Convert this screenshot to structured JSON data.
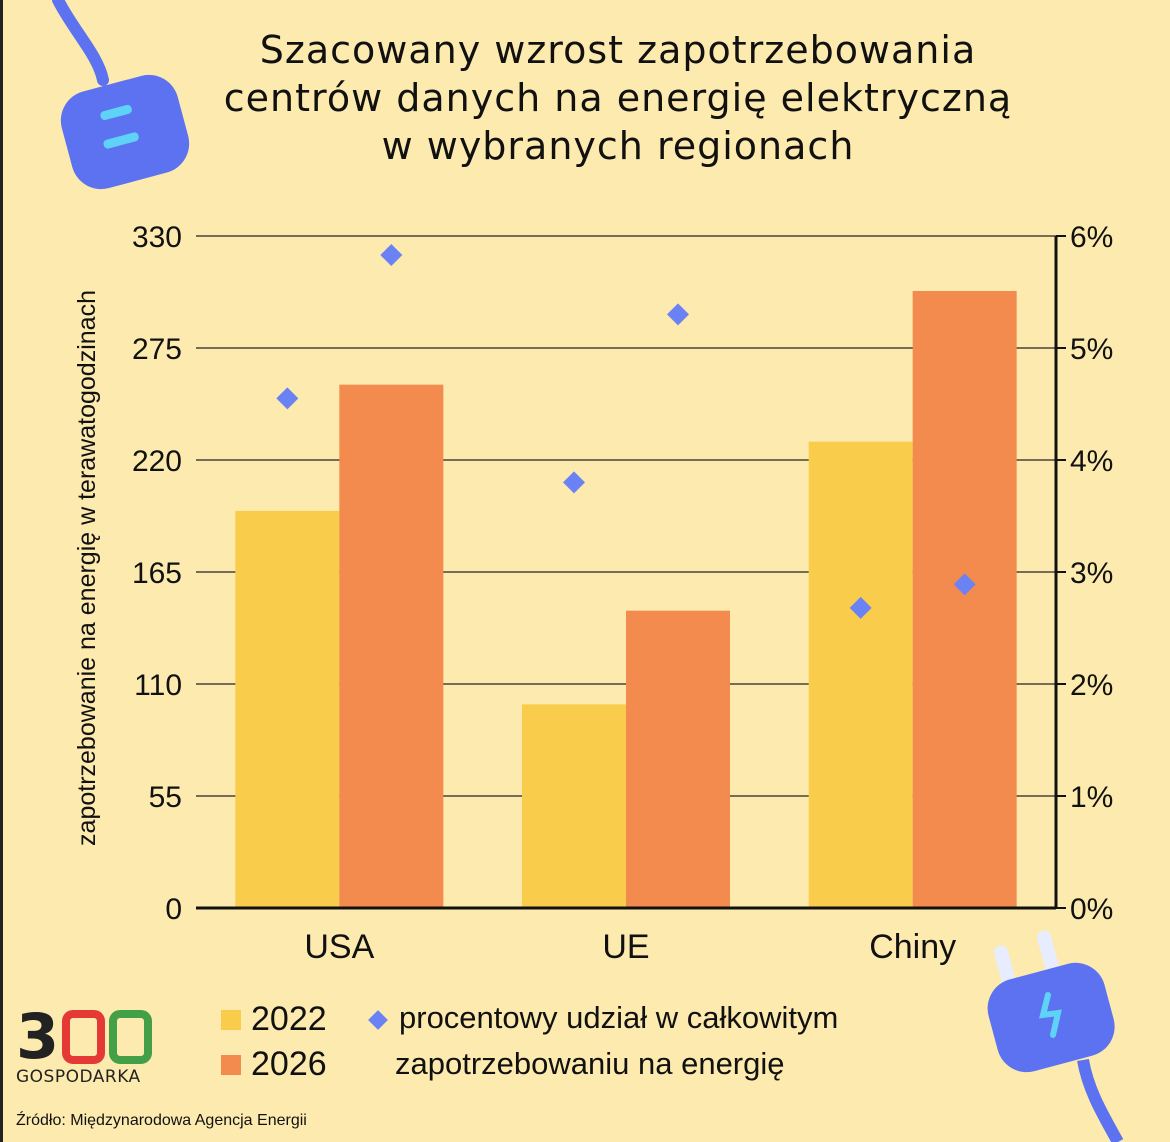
{
  "chart_data": {
    "type": "bar",
    "title": "Szacowany wzrost zapotrzebowania centrów danych na energię elektryczną w wybranych regionach",
    "title_lines": [
      "Szacowany wzrost zapotrzebowania",
      "centrów danych na energię elektryczną",
      "w wybranych regionach"
    ],
    "categories": [
      "USA",
      "UE",
      "Chiny"
    ],
    "series": [
      {
        "name": "2022",
        "values": [
          195,
          100,
          229
        ],
        "color": "#f9cd4b",
        "axis": "left"
      },
      {
        "name": "2026",
        "values": [
          257,
          146,
          303
        ],
        "color": "#f28b4d",
        "axis": "left"
      }
    ],
    "scatter_series": {
      "name": "procentowy udział w całkowitym zapotrzebowaniu na energię",
      "name_lines": [
        "procentowy udział w całkowitym",
        "zapotrzebowaniu na energię"
      ],
      "unit": "%",
      "values_2022": [
        4.55,
        3.8,
        2.68
      ],
      "values_2026": [
        5.83,
        5.3,
        2.89
      ],
      "color": "#6b82f5",
      "axis": "right",
      "marker": "diamond"
    },
    "ylabel": "zapotrzebowanie na energię w terawatogodzinach",
    "ylim": [
      0,
      330
    ],
    "yticks": [
      "0",
      "55",
      "110",
      "165",
      "220",
      "275",
      "330"
    ],
    "y2lim": [
      0,
      6
    ],
    "y2ticks": [
      "0%",
      "1%",
      "2%",
      "3%",
      "4%",
      "5%",
      "6%"
    ],
    "grid": true,
    "legend_position": "bottom"
  },
  "logo": {
    "number": "300",
    "text": "GOSPODARKA"
  },
  "source": "Źródło: Międzynarodowa Agencja Energii",
  "decorations": [
    "plug-icon-top-left",
    "plug-icon-bottom-right"
  ]
}
